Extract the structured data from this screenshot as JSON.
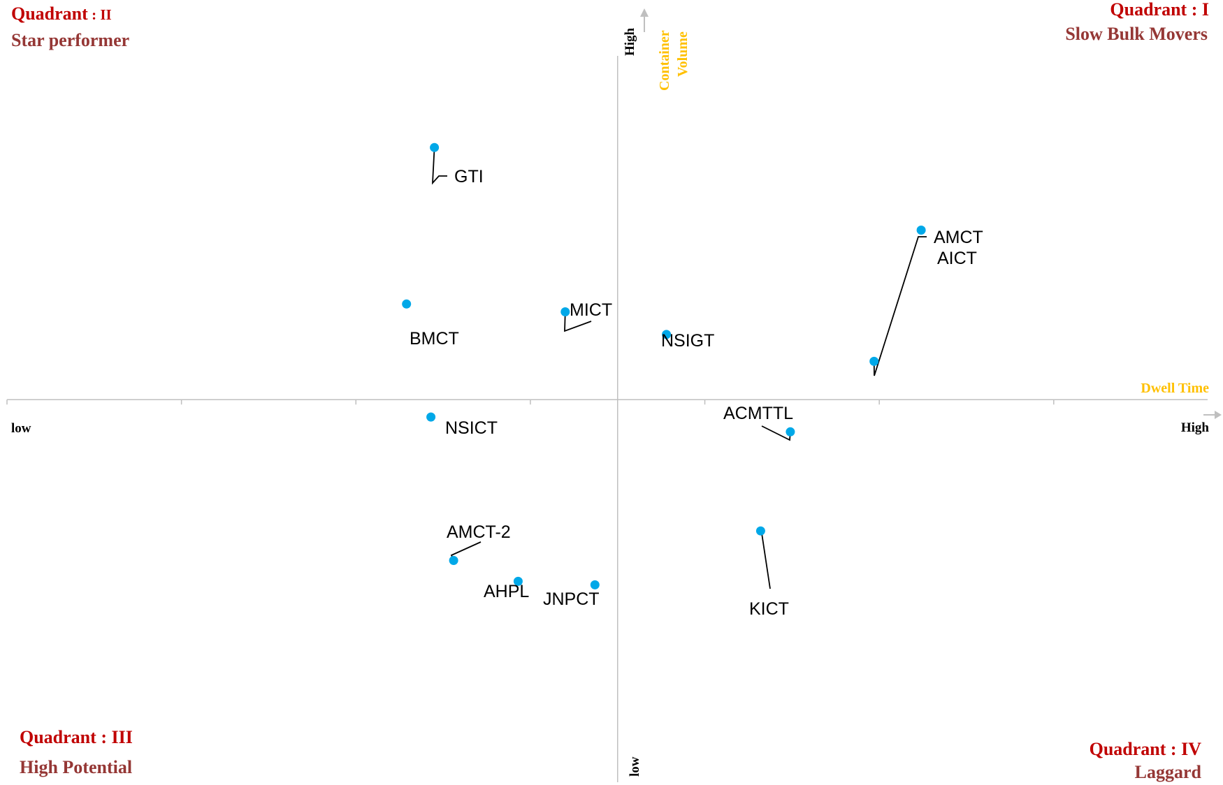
{
  "colors": {
    "quadrant_heading": "#c00000",
    "quadrant_name": "#953735",
    "axis_title": "#ffc000",
    "axis_line": "#bfbfbf",
    "point": "#00a8e8",
    "leader_line": "#000000",
    "text": "#000000"
  },
  "quadrants": [
    {
      "id": "II",
      "heading_word": "Quadrant",
      "heading_sep": " : ",
      "numeral": "II",
      "name": "Star performer"
    },
    {
      "id": "I",
      "heading_word": "Quadrant",
      "heading_sep": " : ",
      "numeral": "I",
      "name": "Slow Bulk Movers"
    },
    {
      "id": "III",
      "heading_word": "Quadrant",
      "heading_sep": " : ",
      "numeral": "III",
      "name": "High Potential"
    },
    {
      "id": "IV",
      "heading_word": "Quadrant",
      "heading_sep": " : ",
      "numeral": "IV",
      "name": "Laggard"
    }
  ],
  "chart_data": {
    "type": "scatter",
    "xlabel": "Dwell Time",
    "ylabel": "Container Volume",
    "ylabel_lines": [
      "Container",
      "Volume"
    ],
    "x_low_label": "low",
    "x_high_label": "High",
    "y_low_label": "low",
    "y_high_label": "High",
    "xlim": [
      -3.5,
      3.35
    ],
    "ylim": [
      -4.4,
      4.5
    ],
    "axis_cross": [
      0,
      0
    ],
    "x_ticks": [
      -3.5,
      -2.5,
      -1.5,
      -0.5,
      0.5,
      1.5,
      2.5
    ],
    "grid": false,
    "legend": "none",
    "points": [
      {
        "label": "GTI",
        "x": -1.05,
        "y": 2.9
      },
      {
        "label": "AMCT",
        "x": 1.47,
        "y": 0.44
      },
      {
        "label": "AICT",
        "x": 1.74,
        "y": 1.95
      },
      {
        "label": "BMCT",
        "x": -1.21,
        "y": 1.1
      },
      {
        "label": "MICT",
        "x": -0.3,
        "y": 1.01
      },
      {
        "label": "NSIGT",
        "x": 0.28,
        "y": 0.75
      },
      {
        "label": "NSICT",
        "x": -1.07,
        "y": -0.2
      },
      {
        "label": "ACMTTL",
        "x": 0.99,
        "y": -0.37
      },
      {
        "label": "KICT",
        "x": 0.82,
        "y": -1.51
      },
      {
        "label": "AMCT-2",
        "x": -0.94,
        "y": -1.85
      },
      {
        "label": "AHPL",
        "x": -0.57,
        "y": -2.09
      },
      {
        "label": "JNPCT",
        "x": -0.13,
        "y": -2.13
      }
    ]
  }
}
